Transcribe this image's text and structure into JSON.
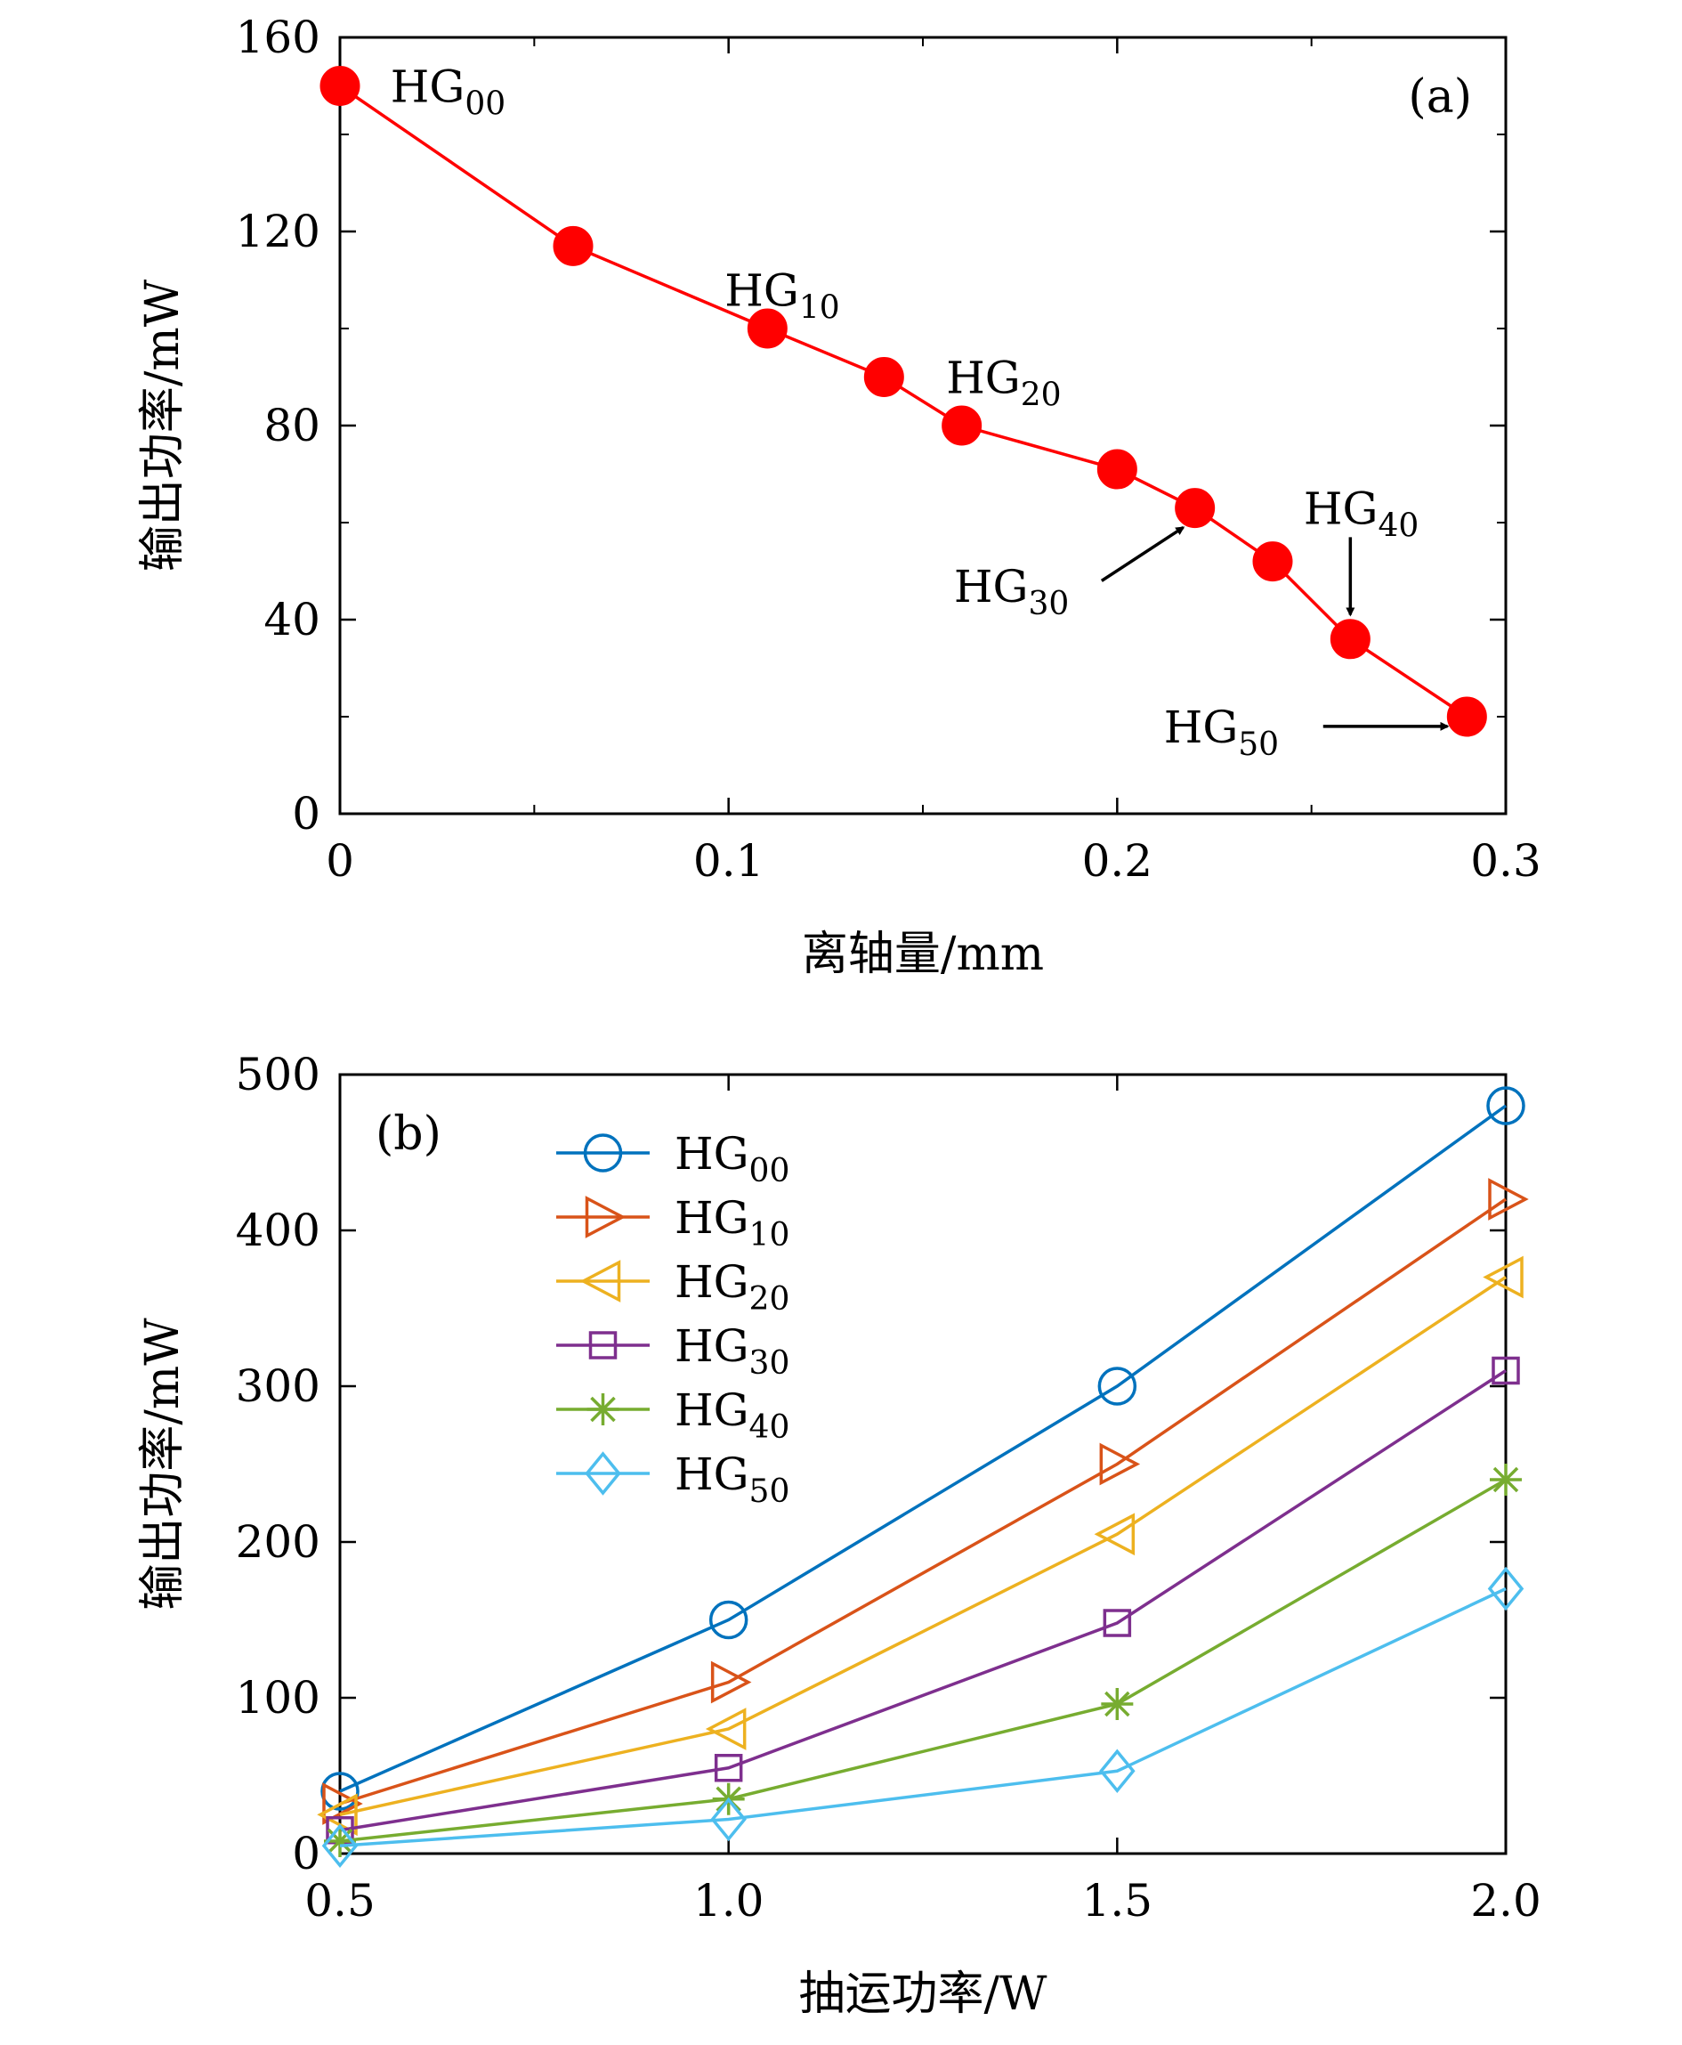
{
  "chart_data": [
    {
      "panel": "(a)",
      "type": "line",
      "xlabel": "离轴量/mm",
      "ylabel": "输出功率/mW",
      "xlim": [
        0,
        0.3
      ],
      "ylim": [
        0,
        160
      ],
      "xticks": [
        0,
        0.1,
        0.2,
        0.3
      ],
      "xtick_labels": [
        "0",
        "0.1",
        "0.2",
        "0.3"
      ],
      "yticks": [
        0,
        40,
        80,
        120,
        160
      ],
      "ytick_labels": [
        "0",
        "40",
        "80",
        "120",
        "160"
      ],
      "x_minor_ticks": [
        0.05,
        0.15,
        0.25
      ],
      "y_minor_ticks": [
        20,
        60,
        100,
        140
      ],
      "color": "#ff0000",
      "marker": "filled-circle",
      "x": [
        0,
        0.06,
        0.11,
        0.14,
        0.16,
        0.2,
        0.22,
        0.24,
        0.26,
        0.29
      ],
      "y": [
        150,
        117,
        100,
        90,
        80,
        71,
        63,
        52,
        36,
        20
      ],
      "annotations": [
        {
          "base": "HG",
          "sub": "00",
          "x": 0.013,
          "y": 150,
          "arrow": false
        },
        {
          "base": "HG",
          "sub": "10",
          "x": 0.099,
          "y": 108,
          "arrow": false
        },
        {
          "base": "HG",
          "sub": "20",
          "x": 0.156,
          "y": 90,
          "arrow": false
        },
        {
          "base": "HG",
          "sub": "30",
          "x": 0.158,
          "y": 47,
          "arrow": true,
          "arrow_from": [
            0.196,
            48
          ],
          "arrow_to": [
            0.217,
            59
          ]
        },
        {
          "base": "HG",
          "sub": "40",
          "x": 0.248,
          "y": 63,
          "arrow": true,
          "arrow_from": [
            0.26,
            57
          ],
          "arrow_to": [
            0.26,
            41
          ]
        },
        {
          "base": "HG",
          "sub": "50",
          "x": 0.212,
          "y": 18,
          "arrow": true,
          "arrow_from": [
            0.253,
            18
          ],
          "arrow_to": [
            0.285,
            18
          ]
        }
      ]
    },
    {
      "panel": "(b)",
      "type": "line",
      "xlabel": "抽运功率/W",
      "ylabel": "输出功率/mW",
      "xlim": [
        0.5,
        2.0
      ],
      "ylim": [
        0,
        500
      ],
      "xticks": [
        0.5,
        1.0,
        1.5,
        2.0
      ],
      "xtick_labels": [
        "0.5",
        "1.0",
        "1.5",
        "2.0"
      ],
      "yticks": [
        0,
        100,
        200,
        300,
        400,
        500
      ],
      "ytick_labels": [
        "0",
        "100",
        "200",
        "300",
        "400",
        "500"
      ],
      "legend_position": "upper-left",
      "categories": [
        0.5,
        1.0,
        1.5,
        2.0
      ],
      "series": [
        {
          "name": "HG00",
          "base": "HG",
          "sub": "00",
          "color": "#0072bd",
          "marker": "circle",
          "values": [
            40,
            150,
            300,
            480
          ]
        },
        {
          "name": "HG10",
          "base": "HG",
          "sub": "10",
          "color": "#d95319",
          "marker": "triangle-right",
          "values": [
            32,
            110,
            250,
            420
          ]
        },
        {
          "name": "HG20",
          "base": "HG",
          "sub": "20",
          "color": "#edb120",
          "marker": "triangle-left",
          "values": [
            25,
            80,
            205,
            370
          ]
        },
        {
          "name": "HG30",
          "base": "HG",
          "sub": "30",
          "color": "#7e2f8e",
          "marker": "square",
          "values": [
            15,
            55,
            148,
            310
          ]
        },
        {
          "name": "HG40",
          "base": "HG",
          "sub": "40",
          "color": "#77ac30",
          "marker": "asterisk",
          "values": [
            8,
            35,
            96,
            240
          ]
        },
        {
          "name": "HG50",
          "base": "HG",
          "sub": "50",
          "color": "#4dbeee",
          "marker": "diamond",
          "values": [
            5,
            22,
            53,
            170
          ]
        }
      ]
    }
  ]
}
